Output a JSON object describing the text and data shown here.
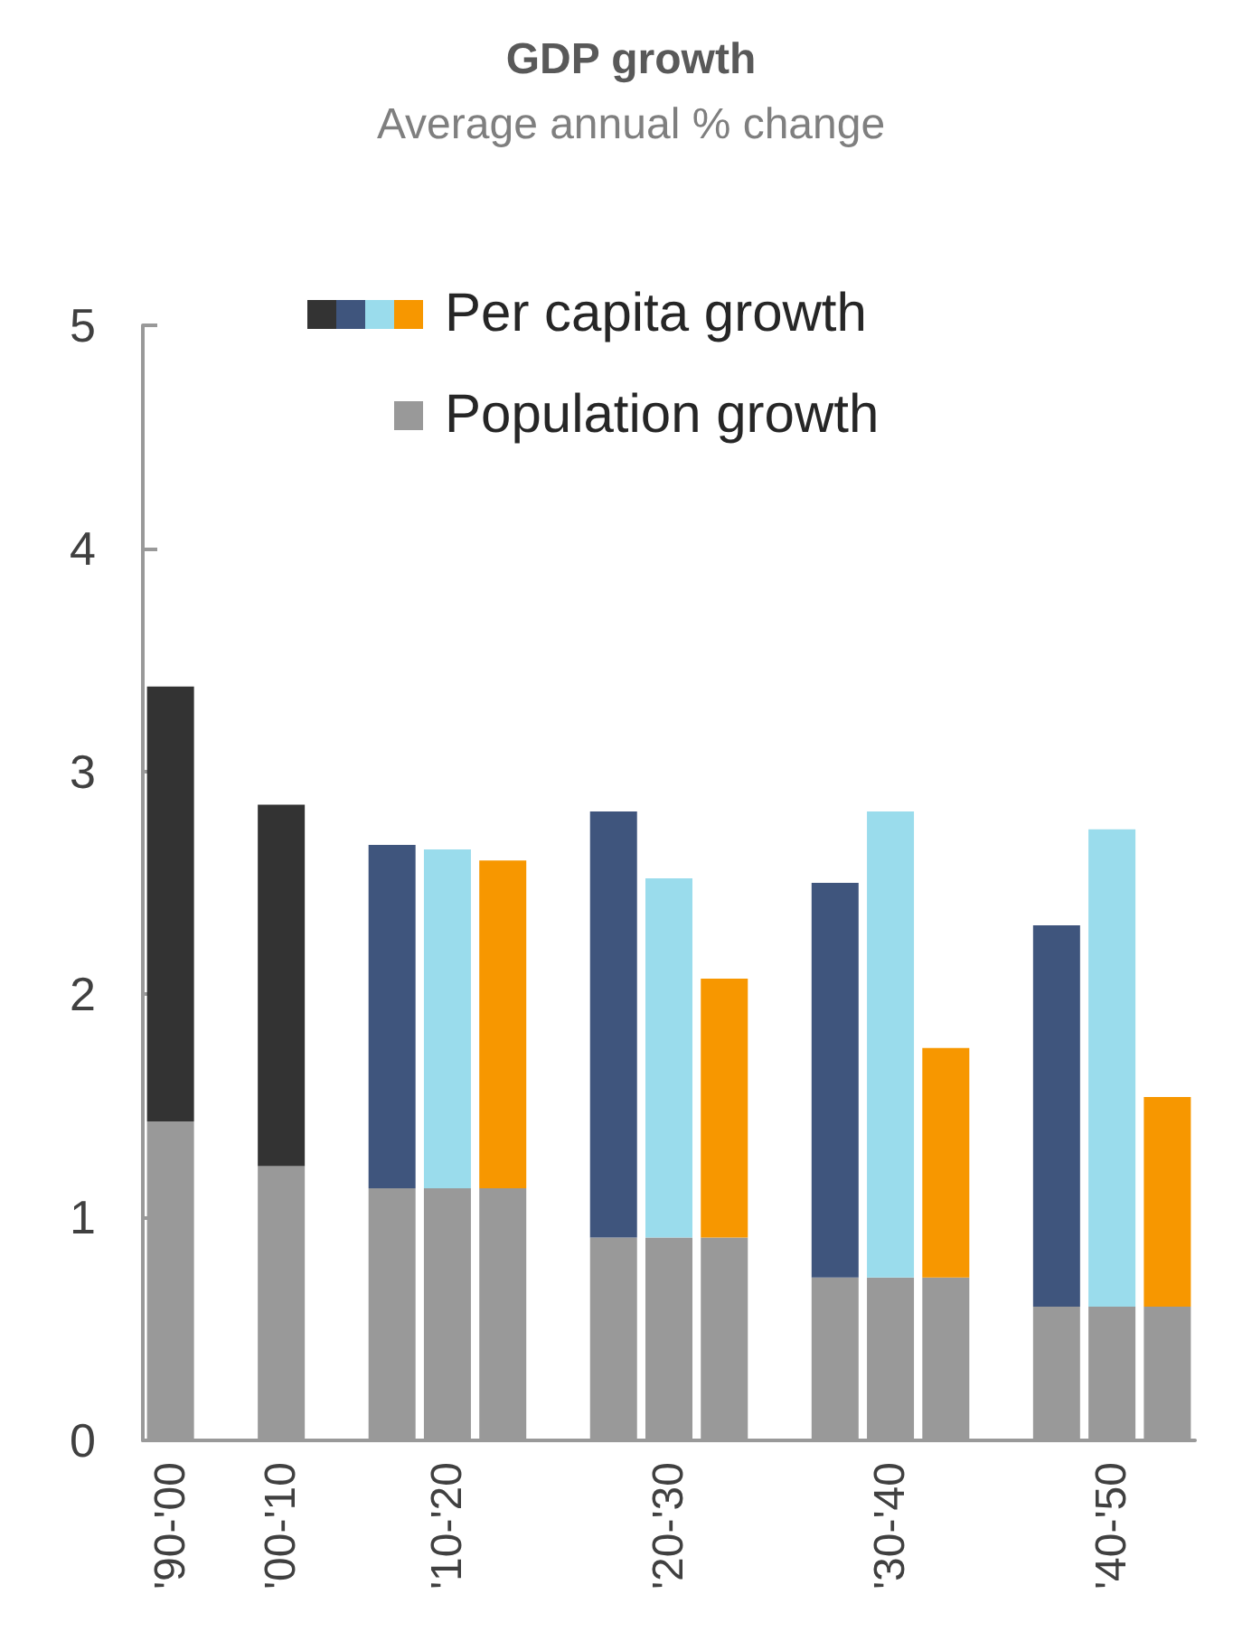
{
  "chart_data": {
    "type": "bar",
    "title": "GDP growth",
    "subtitle": "Average annual % change",
    "stacked": true,
    "categories": [
      "'90-'00",
      null,
      "'00-'10",
      null,
      null,
      "'10-'20",
      null,
      null,
      null,
      "'20-'30",
      null,
      null,
      null,
      "'30-'40",
      null,
      null,
      null,
      "'40-'50",
      null
    ],
    "series": [
      {
        "name": "Population growth",
        "color": "#999999",
        "values": [
          1.43,
          null,
          1.23,
          null,
          1.13,
          1.13,
          1.13,
          null,
          0.91,
          0.91,
          0.91,
          null,
          0.73,
          0.73,
          0.73,
          null,
          0.6,
          0.6,
          0.6
        ]
      },
      {
        "name": "Per capita growth",
        "colors": [
          "#333333",
          null,
          "#333333",
          null,
          "#3f557d",
          "#9adcec",
          "#f79700",
          null,
          "#3f557d",
          "#9adcec",
          "#f79700",
          null,
          "#3f557d",
          "#9adcec",
          "#f79700",
          null,
          "#3f557d",
          "#9adcec",
          "#f79700"
        ],
        "values": [
          1.95,
          null,
          1.62,
          null,
          1.54,
          1.52,
          1.47,
          null,
          1.91,
          1.61,
          1.16,
          null,
          1.77,
          2.09,
          1.03,
          null,
          1.71,
          2.14,
          0.94
        ]
      }
    ],
    "ylim": [
      0,
      5
    ],
    "yticks": [
      0,
      1,
      2,
      3,
      4,
      5
    ],
    "grid": false,
    "legend": "top"
  }
}
